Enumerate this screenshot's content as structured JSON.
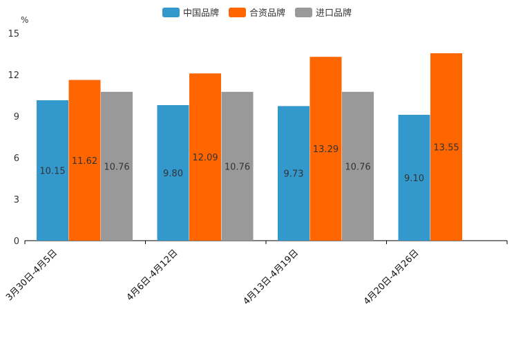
{
  "chart_data": {
    "type": "bar",
    "unit": "%",
    "categories": [
      "3月30日-4月5日",
      "4月6日-4月12日",
      "4月13日-4月19日",
      "4月20日-4月26日"
    ],
    "series": [
      {
        "name": "中国品牌",
        "color": "#3399cc",
        "values": [
          10.15,
          9.8,
          9.73,
          9.1
        ]
      },
      {
        "name": "合资品牌",
        "color": "#ff6600",
        "values": [
          11.62,
          12.09,
          13.29,
          13.55
        ]
      },
      {
        "name": "进口品牌",
        "color": "#999999",
        "values": [
          10.76,
          10.76,
          10.76,
          null
        ]
      }
    ],
    "data_labels": [
      [
        "10.15",
        "9.80",
        "9.73",
        "9.10"
      ],
      [
        "11.62",
        "12.09",
        "13.29",
        "13.55"
      ],
      [
        "10.76",
        "10.76",
        "10.76",
        null
      ]
    ],
    "ylim": [
      0,
      15
    ],
    "yticks": [
      "0",
      "3",
      "6",
      "9",
      "12",
      "15"
    ],
    "ytick_values": [
      0,
      3,
      6,
      9,
      12,
      15
    ],
    "legend_position": "top-center"
  }
}
